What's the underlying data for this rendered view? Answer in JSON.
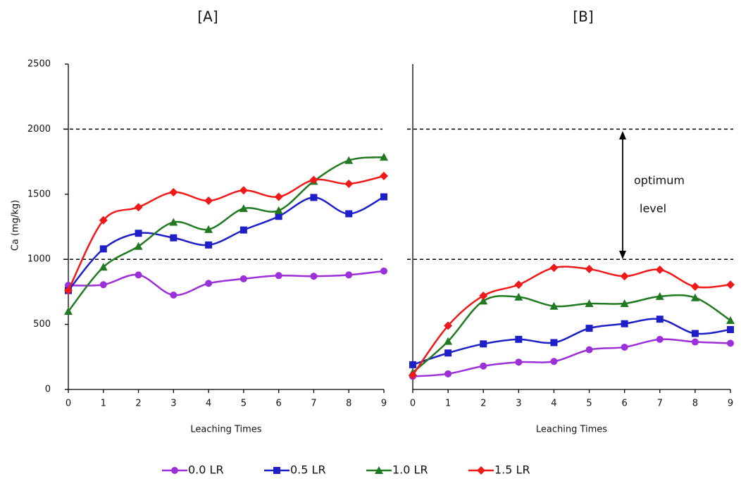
{
  "chart_data": [
    {
      "type": "line",
      "title": "[A]",
      "y_label": "Ca (mg/kg)",
      "x_label": "Leaching Times",
      "x": [
        0,
        1,
        2,
        3,
        4,
        5,
        6,
        7,
        8,
        9
      ],
      "xlim": [
        0,
        9
      ],
      "xticks": [
        0,
        1,
        2,
        3,
        4,
        5,
        6,
        7,
        8,
        9
      ],
      "ylim": [
        0,
        2500
      ],
      "yticks": [
        0,
        500,
        1000,
        1500,
        2000,
        2500
      ],
      "reference_lines": [
        1000,
        2000
      ],
      "series": [
        {
          "name": "0.0 LR",
          "color": "#9b30d9",
          "marker": "circle",
          "values": [
            800,
            805,
            880,
            725,
            815,
            850,
            875,
            870,
            880,
            910
          ]
        },
        {
          "name": "0.5 LR",
          "color": "#1f1fc8",
          "marker": "square",
          "values": [
            760,
            1080,
            1200,
            1165,
            1110,
            1225,
            1330,
            1475,
            1350,
            1480
          ]
        },
        {
          "name": "1.0 LR",
          "color": "#217a21",
          "marker": "triangle",
          "values": [
            600,
            940,
            1100,
            1285,
            1230,
            1390,
            1375,
            1600,
            1760,
            1785
          ]
        },
        {
          "name": "1.5 LR",
          "color": "#f01818",
          "marker": "diamond",
          "values": [
            760,
            1300,
            1400,
            1515,
            1450,
            1530,
            1480,
            1610,
            1580,
            1640
          ]
        }
      ]
    },
    {
      "type": "line",
      "title": "[B]",
      "x_label": "Leaching Times",
      "annotations": [
        "optimum",
        "level"
      ],
      "x": [
        0,
        1,
        2,
        3,
        4,
        5,
        6,
        7,
        8,
        9
      ],
      "xlim": [
        0,
        9
      ],
      "xticks": [
        0,
        1,
        2,
        3,
        4,
        5,
        6,
        7,
        8,
        9
      ],
      "ylim": [
        0,
        2500
      ],
      "reference_lines": [
        1000,
        2000
      ],
      "series": [
        {
          "color": "#9b30d9",
          "marker": "circle",
          "values": [
            100,
            120,
            180,
            210,
            215,
            305,
            325,
            385,
            365,
            355
          ]
        },
        {
          "color": "#1f1fc8",
          "marker": "square",
          "values": [
            190,
            280,
            350,
            385,
            360,
            470,
            505,
            540,
            430,
            460
          ]
        },
        {
          "color": "#217a21",
          "marker": "triangle",
          "values": [
            130,
            370,
            680,
            710,
            640,
            660,
            660,
            715,
            705,
            530
          ]
        },
        {
          "color": "#f01818",
          "marker": "diamond",
          "values": [
            110,
            490,
            720,
            805,
            935,
            925,
            870,
            920,
            790,
            805
          ]
        }
      ]
    }
  ]
}
